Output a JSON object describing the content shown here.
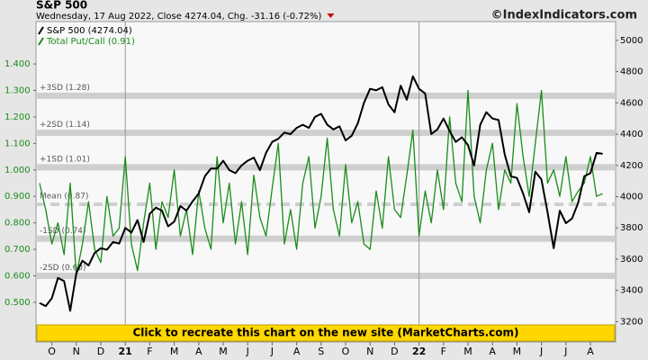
{
  "chart_data": {
    "type": "line",
    "title": "S&P 500",
    "subtitle": "Wednesday, 17 Aug 2022, Close 4274.04, Chg. -31.16 (-0.72%)",
    "source": "©IndexIndicators.com",
    "banner": "Click to recreate this chart on the new site (MarketCharts.com)",
    "categories": [
      null,
      null,
      "O",
      null,
      null,
      null,
      "N",
      null,
      null,
      null,
      "D",
      null,
      null,
      null,
      "21",
      null,
      null,
      null,
      "F",
      null,
      null,
      null,
      "M",
      null,
      null,
      null,
      "A",
      null,
      null,
      null,
      "M",
      null,
      null,
      null,
      "J",
      null,
      null,
      null,
      "J",
      null,
      null,
      null,
      "A",
      null,
      null,
      null,
      "S",
      null,
      null,
      null,
      "O",
      null,
      null,
      null,
      "N",
      null,
      null,
      null,
      "D",
      null,
      null,
      null,
      "22",
      null,
      null,
      null,
      "F",
      null,
      null,
      null,
      "M",
      null,
      null,
      null,
      "A",
      null,
      null,
      null,
      "M",
      null,
      null,
      null,
      "J",
      null,
      null,
      null,
      "J",
      null,
      null,
      null,
      "A",
      null,
      null
    ],
    "series": [
      {
        "name": "S&P 500 (4274.04)",
        "color": "#000000",
        "axis": "y2",
        "values": [
          3320,
          3300,
          3350,
          3480,
          3460,
          3270,
          3510,
          3590,
          3560,
          3640,
          3670,
          3660,
          3710,
          3700,
          3800,
          3770,
          3850,
          3710,
          3890,
          3930,
          3910,
          3810,
          3840,
          3940,
          3910,
          3970,
          4020,
          4130,
          4180,
          4180,
          4230,
          4170,
          4150,
          4200,
          4230,
          4250,
          4170,
          4280,
          4350,
          4370,
          4410,
          4400,
          4440,
          4460,
          4440,
          4510,
          4530,
          4460,
          4430,
          4450,
          4360,
          4390,
          4470,
          4600,
          4690,
          4680,
          4700,
          4590,
          4540,
          4710,
          4620,
          4770,
          4690,
          4660,
          4400,
          4430,
          4500,
          4420,
          4350,
          4380,
          4330,
          4200,
          4460,
          4540,
          4500,
          4490,
          4270,
          4130,
          4120,
          4020,
          3900,
          4160,
          4110,
          3900,
          3670,
          3910,
          3830,
          3860,
          3960,
          4130,
          4150,
          4280,
          4274.04
        ]
      },
      {
        "name": "Total Put/Call (0.91)",
        "color": "#1a8c1a",
        "values": [
          0.95,
          0.85,
          0.72,
          0.8,
          0.68,
          0.95,
          0.6,
          0.72,
          0.88,
          0.7,
          0.65,
          0.9,
          0.75,
          0.78,
          1.05,
          0.72,
          0.62,
          0.8,
          0.95,
          0.7,
          0.88,
          0.82,
          1.0,
          0.75,
          0.85,
          0.68,
          0.92,
          0.78,
          0.7,
          1.05,
          0.8,
          0.95,
          0.72,
          0.88,
          0.68,
          0.98,
          0.82,
          0.75,
          0.93,
          1.1,
          0.72,
          0.85,
          0.7,
          0.95,
          1.05,
          0.78,
          0.9,
          1.12,
          0.85,
          0.75,
          1.02,
          0.8,
          0.88,
          0.72,
          0.7,
          0.92,
          0.78,
          1.05,
          0.85,
          0.82,
          0.98,
          1.15,
          0.75,
          0.92,
          0.8,
          1.0,
          0.85,
          1.2,
          0.95,
          0.88,
          1.3,
          0.9,
          0.8,
          1.0,
          1.1,
          0.85,
          1.0,
          0.95,
          1.25,
          1.05,
          0.9,
          1.1,
          1.3,
          0.95,
          1.0,
          0.9,
          1.05,
          0.88,
          0.92,
          0.95,
          1.05,
          0.9,
          0.91
        ]
      }
    ],
    "bands": [
      {
        "label": "+3SD (1.28)",
        "value": 1.28
      },
      {
        "label": "+2SD (1.14)",
        "value": 1.14
      },
      {
        "label": "+1SD (1.01)",
        "value": 1.01
      },
      {
        "label": "Mean (0.87)",
        "value": 0.87
      },
      {
        "label": "-1SD (0.74)",
        "value": 0.74
      },
      {
        "label": "-2SD (0.60)",
        "value": 0.6
      }
    ],
    "ylim": [
      0.35,
      1.56
    ],
    "yticks": [
      {
        "value": 0.5,
        "label": "0.500"
      },
      {
        "value": 0.6,
        "label": "0.600"
      },
      {
        "value": 0.7,
        "label": "0.700"
      },
      {
        "value": 0.8,
        "label": "0.800"
      },
      {
        "value": 0.9,
        "label": "0.900"
      },
      {
        "value": 1.0,
        "label": "1.000"
      },
      {
        "value": 1.1,
        "label": "1.100"
      },
      {
        "value": 1.2,
        "label": "1.200"
      },
      {
        "value": 1.3,
        "label": "1.300"
      },
      {
        "value": 1.4,
        "label": "1.400"
      }
    ],
    "y2lim": [
      3070,
      5120
    ],
    "y2ticks": [
      3200,
      3400,
      3600,
      3800,
      4000,
      4200,
      4400,
      4600,
      4800,
      5000
    ]
  }
}
